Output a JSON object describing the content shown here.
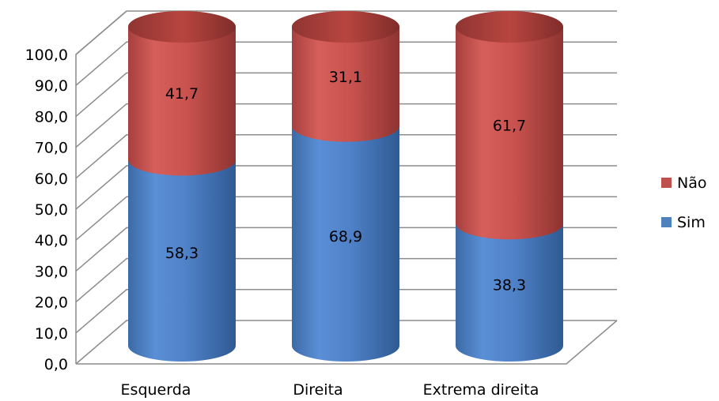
{
  "chart_data": {
    "type": "bar",
    "stacked": true,
    "style": "3d-cylinder",
    "title": "",
    "xlabel": "",
    "ylabel": "",
    "categories": [
      "Esquerda",
      "Direita",
      "Extrema direita"
    ],
    "series": [
      {
        "name": "Sim",
        "values": [
          58.3,
          68.9,
          38.3
        ],
        "color": "#4f81bd",
        "labels": [
          "58,3",
          "68,9",
          "38,3"
        ]
      },
      {
        "name": "Não",
        "values": [
          41.7,
          31.1,
          61.7
        ],
        "color": "#c0504d",
        "labels": [
          "41,7",
          "31,1",
          "61,7"
        ]
      }
    ],
    "ylim": [
      0,
      100
    ],
    "yticks": [
      0,
      10,
      20,
      30,
      40,
      50,
      60,
      70,
      80,
      90,
      100
    ],
    "ytick_labels": [
      "0,0",
      "10,0",
      "20,0",
      "30,0",
      "40,0",
      "50,0",
      "60,0",
      "70,0",
      "80,0",
      "90,0",
      "100,0"
    ],
    "grid": true,
    "legend": {
      "position": "right",
      "order": [
        "Não",
        "Sim"
      ]
    }
  }
}
